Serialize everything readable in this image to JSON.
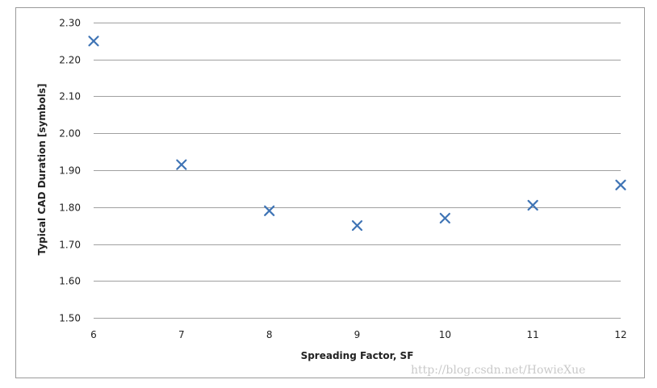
{
  "chart_data": {
    "type": "scatter",
    "title": "",
    "xlabel": "Spreading Factor, SF",
    "ylabel": "Typical CAD Duration [symbols]",
    "x": [
      6,
      7,
      8,
      9,
      10,
      11,
      12
    ],
    "y": [
      2.25,
      1.915,
      1.79,
      1.75,
      1.77,
      1.805,
      1.86
    ],
    "xlim": [
      6,
      12
    ],
    "ylim": [
      1.5,
      2.3
    ],
    "xticks": [
      "6",
      "7",
      "8",
      "9",
      "10",
      "11",
      "12"
    ],
    "yticks": [
      "1.50",
      "1.60",
      "1.70",
      "1.80",
      "1.90",
      "2.00",
      "2.10",
      "2.20",
      "2.30"
    ],
    "grid": "horizontal",
    "marker": "x",
    "marker_color": "#3f74b5",
    "grid_color": "#a0a0a0"
  },
  "watermark": "http://blog.csdn.net/HowieXue"
}
